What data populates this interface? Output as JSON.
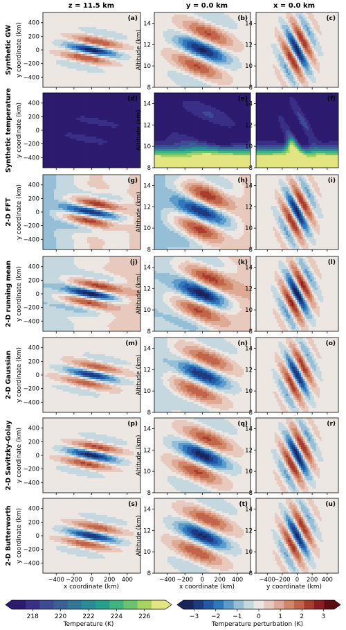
{
  "chart_data": {
    "type": "heatmap",
    "columns": [
      {
        "title": "z = 11.5 km",
        "xlabel": "x coordinate (km)",
        "ylabel": "y coordinate (km)"
      },
      {
        "title": "y = 0.0 km",
        "xlabel": "x coordinate (km)",
        "ylabel": "Altitude (km)"
      },
      {
        "title": "x = 0.0 km",
        "xlabel": "y coordinate (km)",
        "ylabel": "Altitude (km)"
      }
    ],
    "rows": [
      {
        "label": "Synthetic GW",
        "panels": [
          "(a)",
          "(b)",
          "(c)"
        ]
      },
      {
        "label": "Synthetic temperature",
        "panels": [
          "(d)",
          "(e)",
          "(f)"
        ]
      },
      {
        "label": "2-D FFT",
        "panels": [
          "(g)",
          "(h)",
          "(i)"
        ]
      },
      {
        "label": "2-D running mean",
        "panels": [
          "(j)",
          "(k)",
          "(l)"
        ]
      },
      {
        "label": "2-D Gaussian",
        "panels": [
          "(m)",
          "(n)",
          "(o)"
        ]
      },
      {
        "label": "2-D Savitzky-Golay",
        "panels": [
          "(p)",
          "(q)",
          "(r)"
        ]
      },
      {
        "label": "2-D Butterworth",
        "panels": [
          "(s)",
          "(t)",
          "(u)"
        ]
      }
    ],
    "horizontal_ticks": [
      "−400",
      "−200",
      "0",
      "200",
      "400"
    ],
    "horizontal_tick_values": [
      -400,
      -200,
      0,
      200,
      400
    ],
    "horizontal_range": [
      -550,
      550
    ],
    "altitude_ticks": [
      "8",
      "10",
      "12",
      "14"
    ],
    "altitude_tick_values": [
      8,
      10,
      12,
      14
    ],
    "altitude_range": [
      8,
      15
    ],
    "colorbars": [
      {
        "label": "Temperature (K)",
        "ticks": [
          "218",
          "220",
          "222",
          "224",
          "226"
        ],
        "tick_values": [
          218,
          220,
          222,
          224,
          226
        ],
        "range": [
          216.5,
          227.5
        ],
        "colors": [
          "#2c1b6e",
          "#3a2f87",
          "#3e4a93",
          "#3a6196",
          "#337797",
          "#2a8c96",
          "#23a18d",
          "#3fb47f",
          "#6bc46d",
          "#a6d362",
          "#e3e580"
        ]
      },
      {
        "label": "Temperature perturbation (K)",
        "ticks": [
          "−3",
          "−2",
          "−1",
          "0",
          "1",
          "2",
          "3"
        ],
        "tick_values": [
          -3,
          -2,
          -1,
          0,
          1,
          2,
          3
        ],
        "range": [
          -3.5,
          3.5
        ],
        "colors": [
          "#19245a",
          "#1d3b82",
          "#2258a6",
          "#2f78bb",
          "#5b9bcb",
          "#94bfd7",
          "#c6d8df",
          "#ece7e2",
          "#e8c9bd",
          "#deaa96",
          "#d08869",
          "#c16449",
          "#a83d2e",
          "#891d21",
          "#5e0d15"
        ]
      }
    ]
  }
}
